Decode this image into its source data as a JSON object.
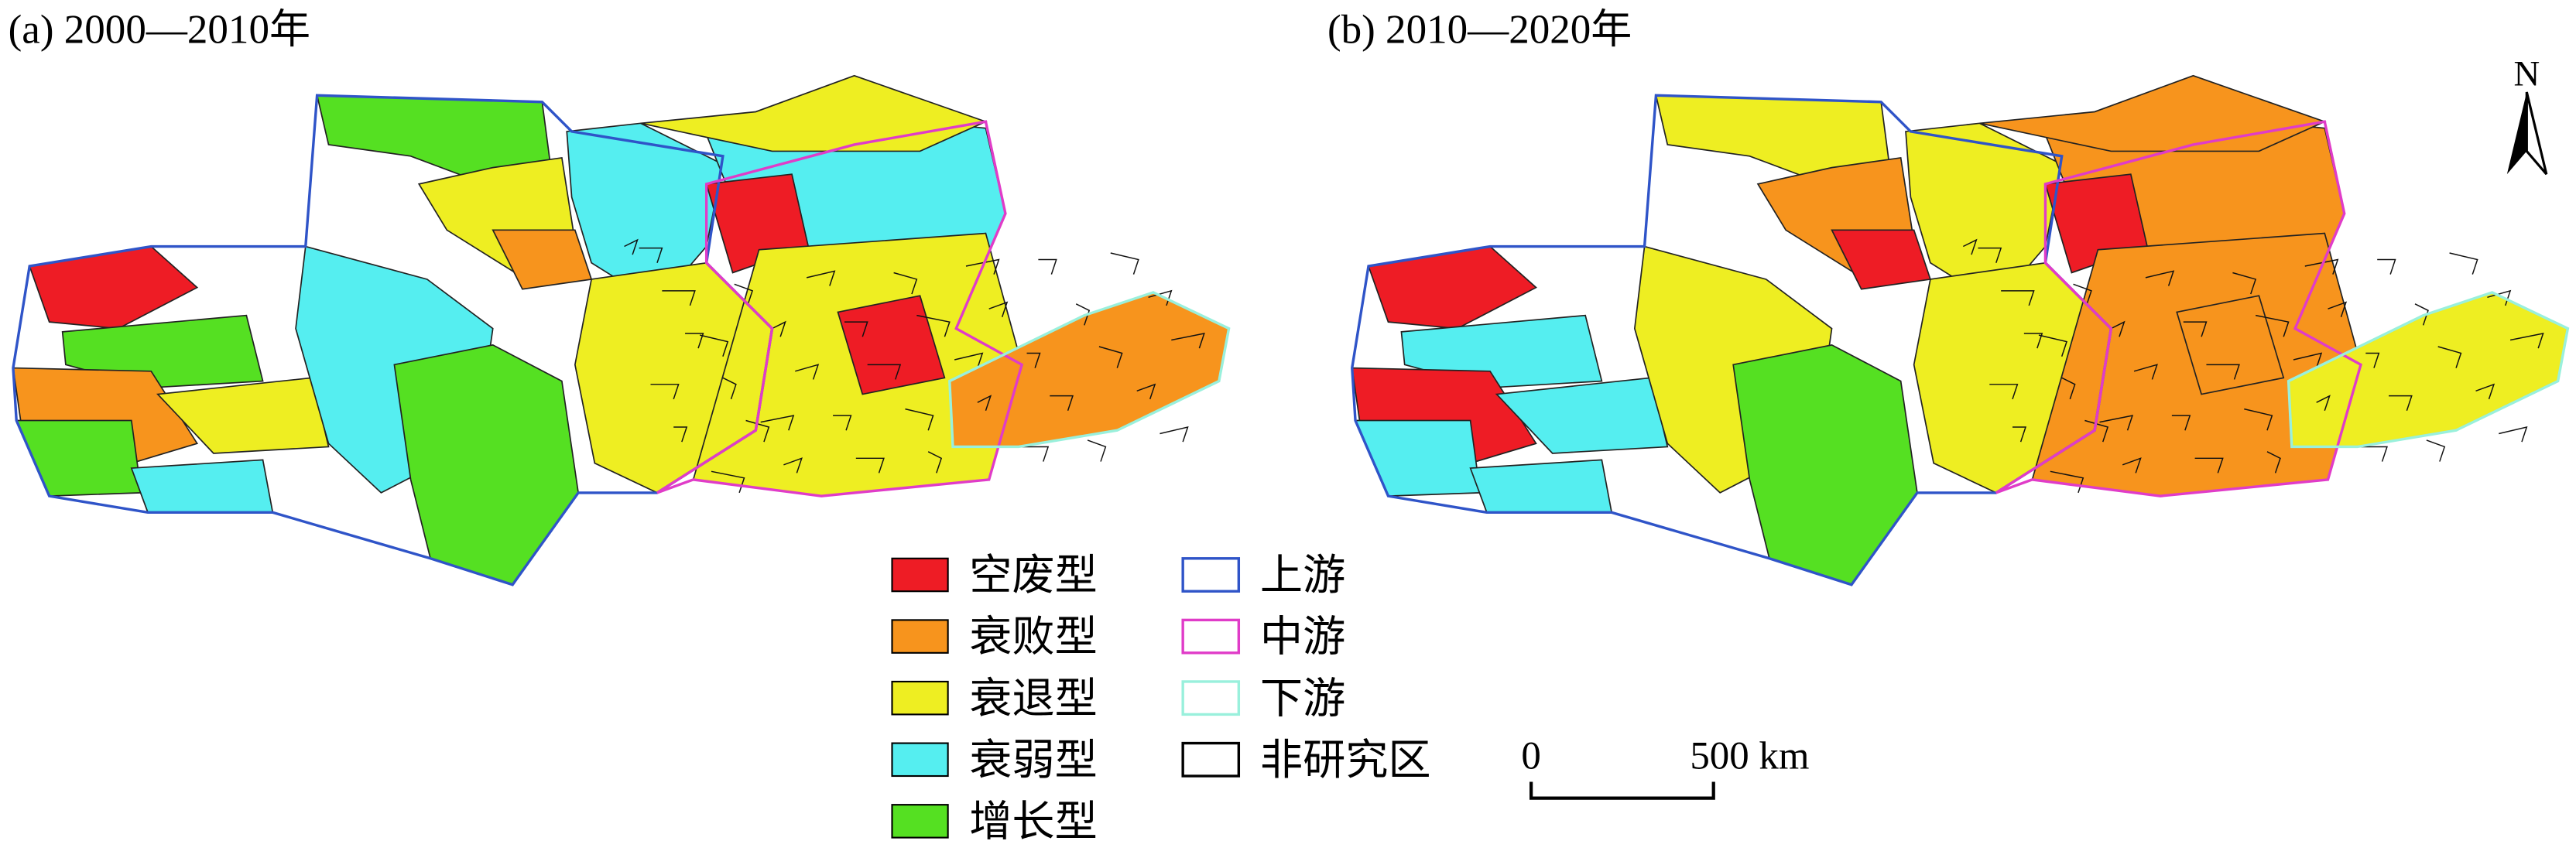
{
  "panels": [
    {
      "title": "(a)  2000—2010年"
    },
    {
      "title": "(b) 2010—2020年"
    }
  ],
  "legend": {
    "types": [
      {
        "label": "空废型",
        "color": "#ee1c25"
      },
      {
        "label": "衰败型",
        "color": "#f7941d"
      },
      {
        "label": "衰退型",
        "color": "#eeee22"
      },
      {
        "label": "衰弱型",
        "color": "#55eef0"
      },
      {
        "label": "增长型",
        "color": "#55e022"
      }
    ],
    "regions": [
      {
        "label": "上游",
        "color": "#2f54c8"
      },
      {
        "label": "中游",
        "color": "#e03cc8"
      },
      {
        "label": "下游",
        "color": "#99f0dc"
      },
      {
        "label": "非研究区",
        "color": "#000000"
      }
    ]
  },
  "scale_bar": {
    "start": "0",
    "end": "500 km"
  },
  "north": "N"
}
